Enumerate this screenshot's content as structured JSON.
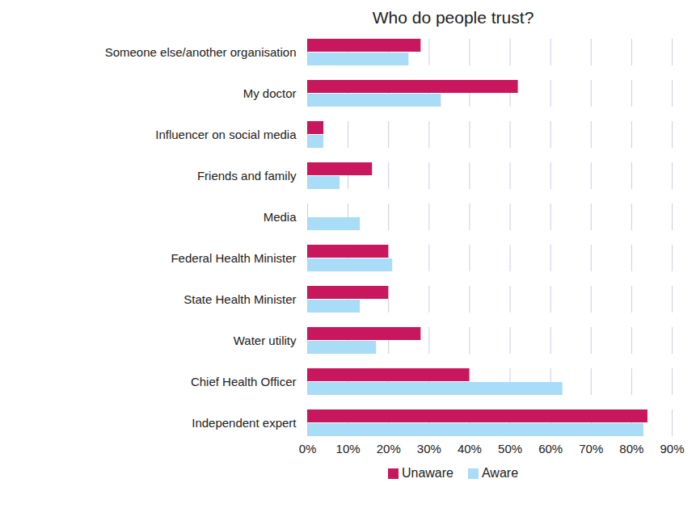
{
  "chart_data": {
    "type": "bar",
    "title": "Who do people trust?",
    "orientation": "horizontal",
    "categories": [
      "Someone else/another organisation",
      "My doctor",
      "Influencer on social media",
      "Friends and family",
      "Media",
      "Federal Health Minister",
      "State Health Minister",
      "Water utility",
      "Chief Health Officer",
      "Independent expert"
    ],
    "series": [
      {
        "name": "Unaware",
        "color": "#c8175d",
        "values": [
          28,
          52,
          4,
          16,
          0,
          20,
          20,
          28,
          40,
          84
        ]
      },
      {
        "name": "Aware",
        "color": "#a8dcf7",
        "values": [
          25,
          33,
          4,
          8,
          13,
          21,
          13,
          17,
          63,
          83
        ]
      }
    ],
    "xlim": [
      0,
      90
    ],
    "xticks": [
      {
        "value": 0,
        "label": "0%"
      },
      {
        "value": 10,
        "label": "10%"
      },
      {
        "value": 20,
        "label": "20%"
      },
      {
        "value": 30,
        "label": "30%"
      },
      {
        "value": 40,
        "label": "40%"
      },
      {
        "value": 50,
        "label": "50%"
      },
      {
        "value": 60,
        "label": "60%"
      },
      {
        "value": 70,
        "label": "70%"
      },
      {
        "value": 80,
        "label": "80%"
      },
      {
        "value": 90,
        "label": "90%"
      }
    ],
    "grid": true,
    "legend": "bottom"
  }
}
